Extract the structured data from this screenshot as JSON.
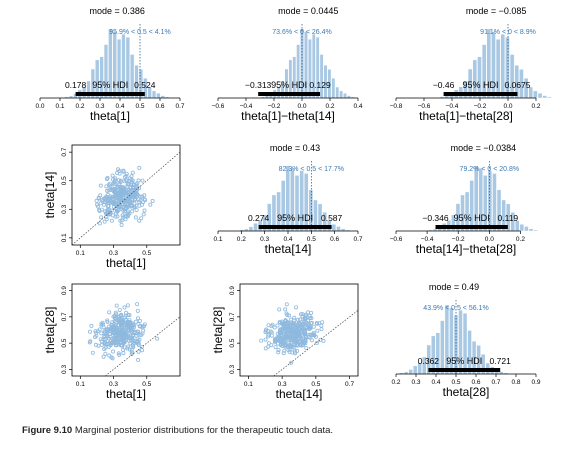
{
  "caption": {
    "label": "Figure 9.10",
    "text": "Marginal posterior distributions for the therapeutic touch data."
  },
  "colors": {
    "bar": "#a9c8e3",
    "bar_edge": "#ffffff",
    "point": "#8fb9de",
    "stat_text": "#3b79b3",
    "hdi_line": "#000000"
  },
  "chart_data": [
    {
      "type": "histogram",
      "xlabel": "theta[1]",
      "xticks": [
        "0.0",
        "0.1",
        "0.2",
        "0.3",
        "0.4",
        "0.5",
        "0.6",
        "0.7"
      ],
      "xlim": [
        0,
        0.7
      ],
      "mode_label": "mode = 0.386",
      "mode": 0.386,
      "compare_label": "95.9% < 0.5 < 4.1%",
      "compare_value": 0.5,
      "hdi_label": "95% HDI",
      "hdi": [
        0.178,
        0.524
      ],
      "hdi_text": [
        "0.178",
        "0.524"
      ],
      "grid": false
    },
    {
      "type": "histogram",
      "xlabel": "theta[1]−theta[14]",
      "xticks": [
        "−0.6",
        "−0.4",
        "−0.2",
        "0.0",
        "0.2",
        "0.4"
      ],
      "xlim": [
        -0.6,
        0.4
      ],
      "mode_label": "mode = 0.0445",
      "mode": 0.0445,
      "compare_label": "73.6% < 0 < 26.4%",
      "compare_value": 0,
      "hdi_label": "95% HDI",
      "hdi": [
        -0.313,
        0.129
      ],
      "hdi_text": [
        "−0.313",
        "0.129"
      ],
      "grid": false
    },
    {
      "type": "histogram",
      "xlabel": "theta[1]−theta[28]",
      "xticks": [
        "−0.8",
        "−0.6",
        "−0.4",
        "−0.2",
        "0.0",
        "0.2"
      ],
      "xlim": [
        -0.8,
        0.2
      ],
      "mode_label": "mode = −0.085",
      "mode": -0.085,
      "compare_label": "91.1% < 0 < 8.9%",
      "compare_value": 0,
      "hdi_label": "95% HDI",
      "hdi": [
        -0.46,
        0.0675
      ],
      "hdi_text": [
        "−0.46",
        "0.0675"
      ],
      "grid": false
    },
    {
      "type": "scatter",
      "xlabel": "theta[1]",
      "ylabel": "theta[14]",
      "xticks": [
        "0.1",
        "0.3",
        "0.5"
      ],
      "yticks": [
        "0.1",
        "0.3",
        "0.5",
        "0.7"
      ],
      "xlim": [
        0.05,
        0.7
      ],
      "ylim": [
        0.05,
        0.75
      ],
      "identity_line": true
    },
    {
      "type": "histogram",
      "xlabel": "theta[14]",
      "xticks": [
        "0.1",
        "0.2",
        "0.3",
        "0.4",
        "0.5",
        "0.6",
        "0.7"
      ],
      "xlim": [
        0.1,
        0.7
      ],
      "mode_label": "mode = 0.43",
      "mode": 0.43,
      "compare_label": "82.3% < 0.5 < 17.7%",
      "compare_value": 0.5,
      "hdi_label": "95% HDI",
      "hdi": [
        0.274,
        0.587
      ],
      "hdi_text": [
        "0.274",
        "0.587"
      ],
      "grid": false
    },
    {
      "type": "histogram",
      "xlabel": "theta[14]−theta[28]",
      "xticks": [
        "−0.6",
        "−0.4",
        "−0.2",
        "0.0",
        "0.2"
      ],
      "xlim": [
        -0.6,
        0.3
      ],
      "mode_label": "mode = −0.0384",
      "mode": -0.0384,
      "compare_label": "79.2% < 0 < 20.8%",
      "compare_value": 0,
      "hdi_label": "95% HDI",
      "hdi": [
        -0.346,
        0.119
      ],
      "hdi_text": [
        "−0.346",
        "0.119"
      ],
      "grid": false
    },
    {
      "type": "scatter",
      "xlabel": "theta[1]",
      "ylabel": "theta[28]",
      "xticks": [
        "0.1",
        "0.3",
        "0.5"
      ],
      "yticks": [
        "0.3",
        "0.5",
        "0.7",
        "0.9"
      ],
      "xlim": [
        0.05,
        0.7
      ],
      "ylim": [
        0.25,
        0.95
      ],
      "identity_line": true
    },
    {
      "type": "scatter",
      "xlabel": "theta[14]",
      "ylabel": "theta[28]",
      "xticks": [
        "0.1",
        "0.3",
        "0.5",
        "0.7"
      ],
      "yticks": [
        "0.3",
        "0.5",
        "0.7",
        "0.9"
      ],
      "xlim": [
        0.05,
        0.75
      ],
      "ylim": [
        0.25,
        0.95
      ],
      "identity_line": true
    },
    {
      "type": "histogram",
      "xlabel": "theta[28]",
      "xticks": [
        "0.2",
        "0.3",
        "0.4",
        "0.5",
        "0.6",
        "0.7",
        "0.8",
        "0.9"
      ],
      "xlim": [
        0.2,
        0.9
      ],
      "mode_label": "mode = 0.49",
      "mode": 0.49,
      "compare_label": "43.9% < 0.5 < 56.1%",
      "compare_value": 0.5,
      "hdi_label": "95% HDI",
      "hdi": [
        0.362,
        0.721
      ],
      "hdi_text": [
        "0.362",
        "0.721"
      ],
      "grid": false
    }
  ]
}
